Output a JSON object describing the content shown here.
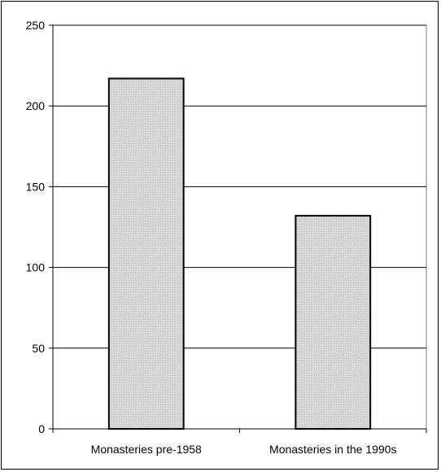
{
  "chart_data": {
    "type": "bar",
    "title": "",
    "xlabel": "",
    "ylabel": "",
    "categories": [
      "Monasteries pre-1958",
      "Monasteries in the 1990s"
    ],
    "values": [
      217,
      132
    ],
    "ylim": [
      0,
      250
    ],
    "yticks": [
      0,
      50,
      100,
      150,
      200,
      250
    ],
    "grid": true,
    "legend": "none",
    "bar_color": "#d9d9d9",
    "bar_border_color": "#000000"
  }
}
